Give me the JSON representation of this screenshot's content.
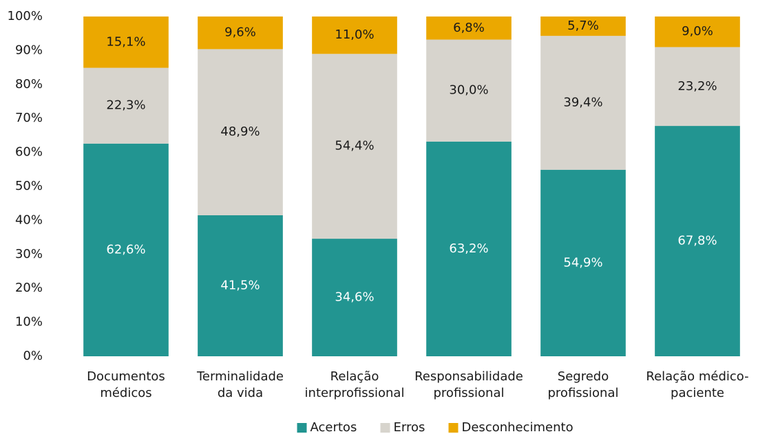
{
  "chart_data": {
    "type": "stacked_bar",
    "categories": [
      "Documentos\nmédicos",
      "Terminalidade\nda vida",
      "Relação\ninterprofissional",
      "Responsabilidade\nprofissional",
      "Segredo\nprofissional",
      "Relação médico-\npaciente"
    ],
    "series": [
      {
        "name": "Acertos",
        "color": "#229591",
        "values": [
          62.6,
          41.5,
          34.6,
          63.2,
          54.9,
          67.8
        ],
        "value_labels": [
          "62,6%",
          "41,5%",
          "34,6%",
          "63,2%",
          "54,9%",
          "67,8%"
        ]
      },
      {
        "name": "Erros",
        "color": "#d7d4cd",
        "values": [
          22.3,
          48.9,
          54.4,
          30.0,
          39.4,
          23.2
        ],
        "value_labels": [
          "22,3%",
          "48,9%",
          "54,4%",
          "30,0%",
          "39,4%",
          "23,2%"
        ]
      },
      {
        "name": "Desconhecimento",
        "color": "#eba800",
        "values": [
          15.1,
          9.6,
          11.0,
          6.8,
          5.7,
          9.0
        ],
        "value_labels": [
          "15,1%",
          "9,6%",
          "11,0%",
          "6,8%",
          "5,7%",
          "9,0%"
        ]
      }
    ],
    "ylim": [
      0,
      100
    ],
    "yticks": [
      {
        "value": 0,
        "label": "0%"
      },
      {
        "value": 10,
        "label": "10%"
      },
      {
        "value": 20,
        "label": "20%"
      },
      {
        "value": 30,
        "label": "30%"
      },
      {
        "value": 40,
        "label": "40%"
      },
      {
        "value": 50,
        "label": "50%"
      },
      {
        "value": 60,
        "label": "60%"
      },
      {
        "value": 70,
        "label": "70%"
      },
      {
        "value": 80,
        "label": "80%"
      },
      {
        "value": 90,
        "label": "90%"
      },
      {
        "value": 100,
        "label": "100%"
      }
    ],
    "legend": "bottom"
  }
}
